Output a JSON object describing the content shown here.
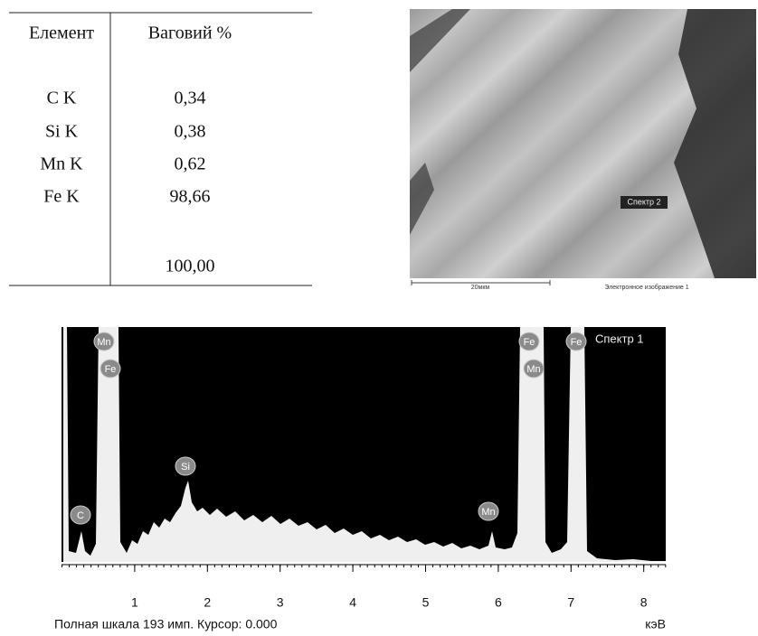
{
  "table": {
    "headers": [
      "Елемент",
      "Ваговий %"
    ],
    "rows": [
      [
        "C K",
        "0,34"
      ],
      [
        "Si K",
        "0,38"
      ],
      [
        "Mn K",
        "0,62"
      ],
      [
        "Fe K",
        "98,66"
      ]
    ],
    "total": "100,00"
  },
  "image": {
    "label": "Спектр 2",
    "scale": "20мкм",
    "caption": "Электронное изображение 1"
  },
  "spectrum": {
    "title": "Спектр 1",
    "xticks": [
      1,
      2,
      3,
      4,
      5,
      6,
      7,
      8
    ],
    "peaks": [
      "Mn",
      "Fe",
      "Si",
      "C",
      "Mn",
      "Fe",
      "Mn",
      "Fe"
    ],
    "footer": "Полная шкала 193 имп. Курсор: 0.000",
    "unit": "кэВ"
  }
}
